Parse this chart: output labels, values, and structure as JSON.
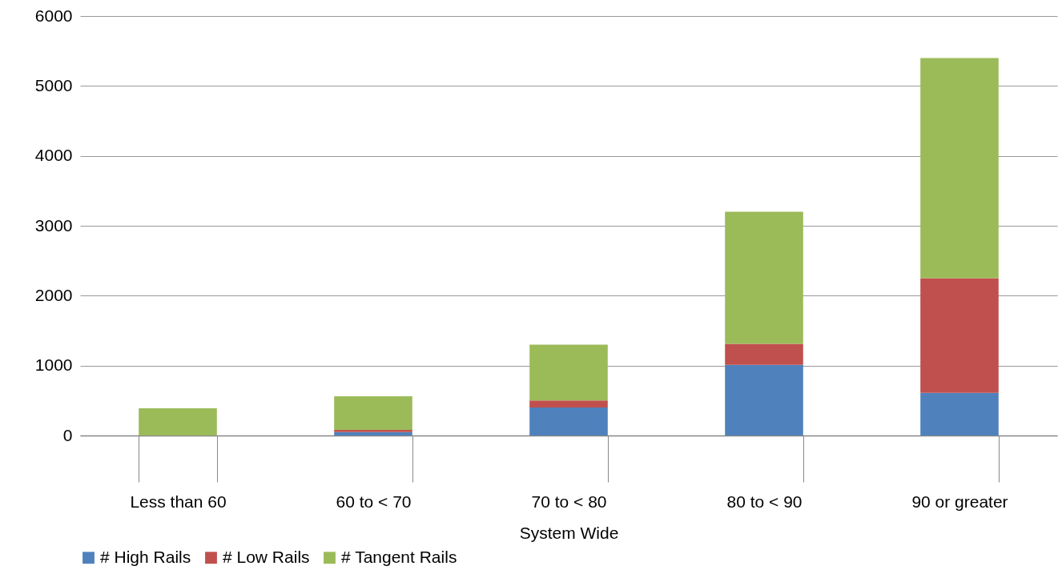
{
  "chart_data": {
    "type": "bar",
    "stacked": true,
    "xlabel": "System Wide",
    "categories": [
      "Less than 60",
      "60 to < 70",
      "70 to < 80",
      "80 to < 90",
      "90 or greater"
    ],
    "series": [
      {
        "name": "# High Rails",
        "color": "#4f81bd",
        "values": [
          0,
          50,
          400,
          1010,
          610
        ]
      },
      {
        "name": "# Low Rails",
        "color": "#c0504d",
        "values": [
          null,
          30,
          100,
          300,
          1640
        ]
      },
      {
        "name": "# Tangent Rails",
        "color": "#9bbb59",
        "values": [
          390,
          480,
          800,
          1890,
          3150
        ]
      }
    ],
    "ylim": [
      0,
      6000
    ],
    "yticks": [
      0,
      1000,
      2000,
      3000,
      4000,
      5000,
      6000
    ],
    "grid": "y",
    "legend": "bottom"
  }
}
